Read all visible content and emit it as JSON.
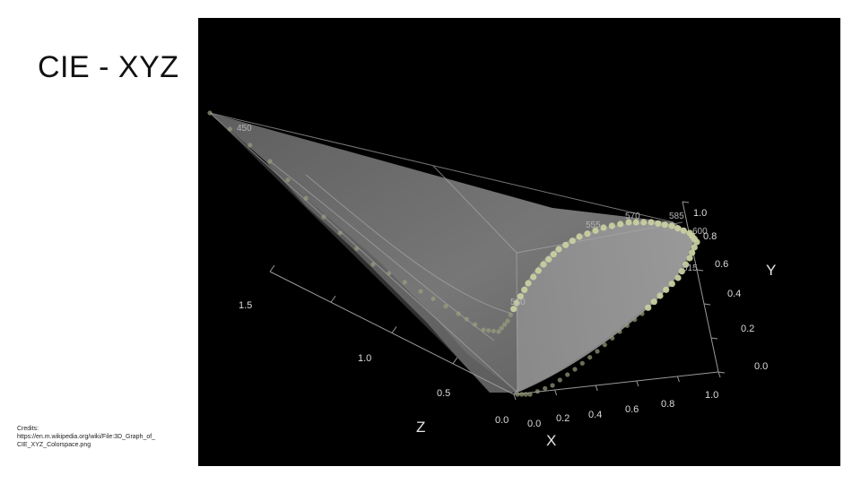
{
  "slide": {
    "title": "CIE - XYZ",
    "credits": {
      "label": "Credits:",
      "line1": "https://en.m.wikipedia.org/wiki/File:3D_Graph_of_",
      "line2": "CIE_XYZ_Colorspace.png"
    }
  },
  "figure": {
    "background": "#000000",
    "surface_color": "#8a8a8a",
    "locus_point_color": "#c9cfa0",
    "axes": {
      "x": {
        "label": "X",
        "ticks": [
          "0.0",
          "0.2",
          "0.4",
          "0.6",
          "0.8",
          "1.0"
        ]
      },
      "y": {
        "label": "Y",
        "ticks": [
          "0.0",
          "0.2",
          "0.4",
          "0.6",
          "0.8",
          "1.0"
        ]
      },
      "z": {
        "label": "Z",
        "ticks": [
          "0.0",
          "0.5",
          "1.0",
          "1.5"
        ]
      }
    },
    "wavelength_labels": [
      "450",
      "585",
      "570",
      "555",
      "600",
      "615",
      "510"
    ]
  }
}
